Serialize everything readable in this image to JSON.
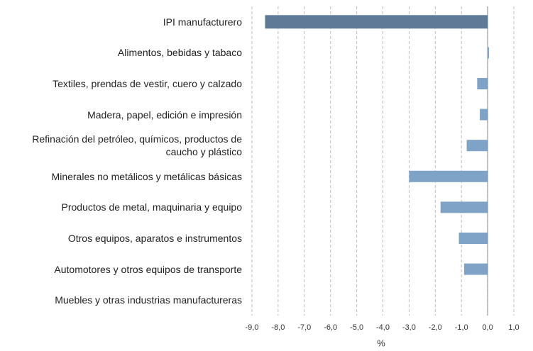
{
  "chart_data": {
    "type": "barh",
    "categories": [
      "IPI manufacturero",
      "Alimentos, bebidas y tabaco",
      "Textiles, prendas de vestir, cuero y calzado",
      "Madera, papel, edición e impresión",
      "Refinación del petróleo, químicos, productos de\ncaucho y plástico",
      "Minerales no metálicos y metálicas básicas",
      "Productos de metal, maquinaria y equipo",
      "Otros equipos, aparatos e instrumentos",
      "Automotores y otros equipos de transporte",
      "Muebles y otras industrias manufactureras"
    ],
    "values": [
      -8.5,
      0.05,
      -0.4,
      -0.3,
      -0.8,
      -3.0,
      -1.8,
      -1.1,
      -0.9,
      0
    ],
    "colors": [
      "#5f7a96",
      "#7ea3c7",
      "#7ea3c7",
      "#7ea3c7",
      "#7ea3c7",
      "#7ea3c7",
      "#7ea3c7",
      "#7ea3c7",
      "#7ea3c7",
      "#7ea3c7"
    ],
    "xlabel": "%",
    "xlim": [
      -9,
      1
    ],
    "xticks": [
      {
        "value": -9,
        "label": "-9,0"
      },
      {
        "value": -8,
        "label": "-8,0"
      },
      {
        "value": -7,
        "label": "-7,0"
      },
      {
        "value": -6,
        "label": "-6,0"
      },
      {
        "value": -5,
        "label": "-5,0"
      },
      {
        "value": -4,
        "label": "-4,0"
      },
      {
        "value": -3,
        "label": "-3,0"
      },
      {
        "value": -2,
        "label": "-2,0"
      },
      {
        "value": -1,
        "label": "-1,0"
      },
      {
        "value": 0,
        "label": "0,0"
      },
      {
        "value": 1,
        "label": "1,0"
      }
    ],
    "grid": true
  }
}
